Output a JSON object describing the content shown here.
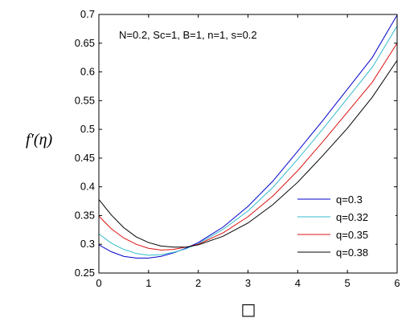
{
  "chart_data": {
    "type": "line",
    "annotation": "N=0.2, Sc=1, B=1, n=1, s=0.2",
    "ylabel": "f′(η)",
    "xlabel": "□",
    "xlim": [
      0,
      6
    ],
    "ylim": [
      0.25,
      0.7
    ],
    "xticks": [
      "0",
      "1",
      "2",
      "3",
      "4",
      "5",
      "6"
    ],
    "yticks": [
      "0.25",
      "0.3",
      "0.35",
      "0.4",
      "0.45",
      "0.5",
      "0.55",
      "0.6",
      "0.65",
      "0.7"
    ],
    "grid": false,
    "legend_position": "bottom-right",
    "x": [
      0,
      0.25,
      0.5,
      0.75,
      1,
      1.25,
      1.5,
      1.75,
      2,
      2.5,
      3,
      3.5,
      4,
      4.5,
      5,
      5.5,
      6
    ],
    "series": [
      {
        "name": "q=0.3",
        "color": "#0000cc",
        "values": [
          0.299,
          0.287,
          0.279,
          0.276,
          0.276,
          0.279,
          0.285,
          0.293,
          0.303,
          0.33,
          0.366,
          0.41,
          0.462,
          0.515,
          0.57,
          0.625,
          0.699
        ]
      },
      {
        "name": "q=0.32",
        "color": "#33bbcc",
        "values": [
          0.318,
          0.302,
          0.291,
          0.284,
          0.281,
          0.282,
          0.286,
          0.292,
          0.301,
          0.326,
          0.358,
          0.399,
          0.448,
          0.5,
          0.554,
          0.608,
          0.68
        ]
      },
      {
        "name": "q=0.35",
        "color": "#dd1111",
        "values": [
          0.349,
          0.327,
          0.311,
          0.3,
          0.293,
          0.29,
          0.291,
          0.295,
          0.3,
          0.32,
          0.348,
          0.384,
          0.428,
          0.478,
          0.53,
          0.582,
          0.65
        ]
      },
      {
        "name": "q=0.38",
        "color": "#000000",
        "values": [
          0.378,
          0.351,
          0.329,
          0.313,
          0.303,
          0.297,
          0.295,
          0.295,
          0.299,
          0.314,
          0.337,
          0.369,
          0.408,
          0.454,
          0.502,
          0.556,
          0.62
        ]
      }
    ]
  }
}
